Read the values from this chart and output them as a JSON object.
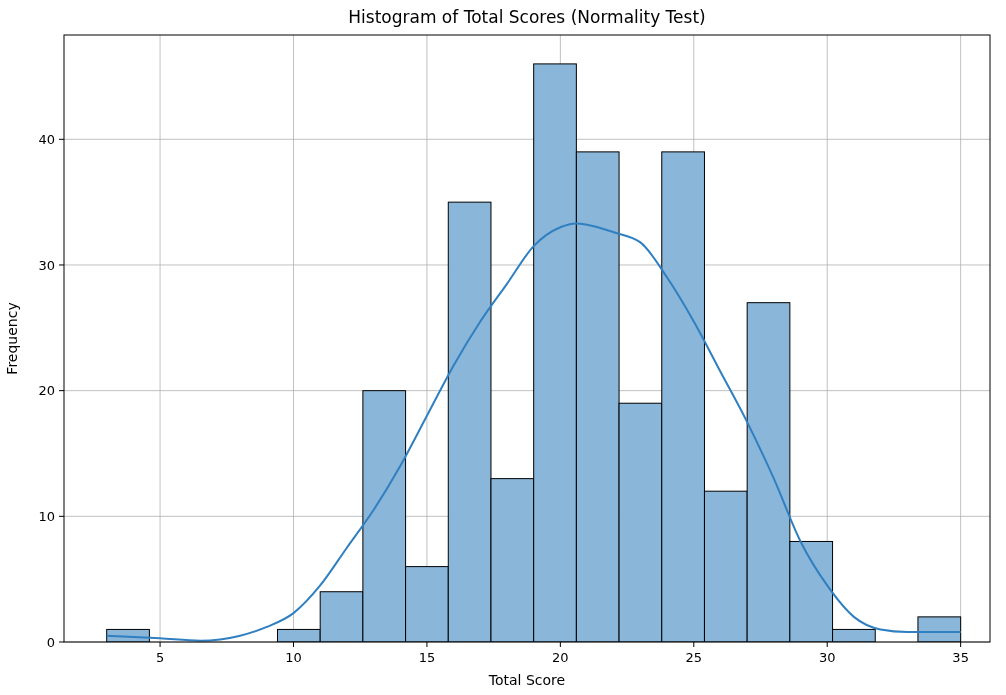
{
  "chart_data": {
    "type": "histogram",
    "title": "Histogram of Total Scores (Normality Test)",
    "xlabel": "Total Score",
    "ylabel": "Frequency",
    "bins": [
      3,
      4.6,
      6.2,
      7.8,
      9.4,
      11,
      12.6,
      14.2,
      15.8,
      17.4,
      19,
      20.6,
      22.2,
      23.8,
      25.4,
      27,
      28.6,
      30.2,
      31.8,
      33.4,
      35
    ],
    "values": [
      1,
      0,
      0,
      0,
      1,
      4,
      20,
      6,
      35,
      13,
      46,
      39,
      19,
      39,
      12,
      27,
      8,
      1,
      0,
      2
    ],
    "color": "#8ab6d9",
    "series": [
      {
        "type": "line",
        "color": "#2f7fc1",
        "x": [
          3,
          5,
          6.5,
          8,
          9,
          10,
          11,
          12,
          13,
          14,
          15,
          16,
          17,
          18,
          19,
          20,
          20.6,
          21,
          22,
          23,
          24,
          25,
          26,
          27,
          28,
          29,
          30,
          31,
          32,
          33,
          34,
          35
        ],
        "values": [
          0.5,
          0.3,
          0.1,
          0.5,
          1.2,
          2.3,
          4.5,
          7.5,
          10.5,
          14,
          18,
          22,
          25.5,
          28.5,
          31.5,
          33,
          33.3,
          33.2,
          32.6,
          31.8,
          29,
          25.5,
          21.5,
          17.5,
          13,
          8,
          4.5,
          2,
          1,
          0.8,
          0.8,
          0.8
        ]
      }
    ],
    "xlim": [
      1.4,
      36.1
    ],
    "xticks": [
      5,
      10,
      15,
      20,
      25,
      30,
      35
    ],
    "ylim": [
      0,
      48.3
    ],
    "yticks": [
      0,
      10,
      20,
      30,
      40
    ],
    "grid": true
  }
}
